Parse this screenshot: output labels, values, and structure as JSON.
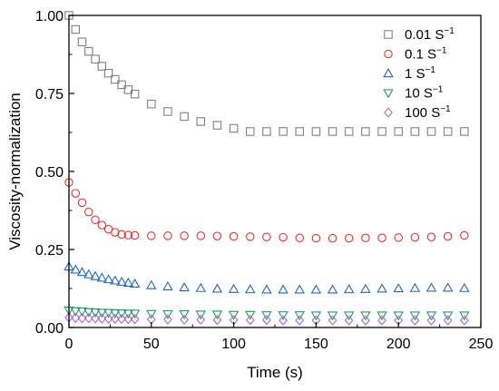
{
  "chart_data": {
    "type": "scatter",
    "title": "",
    "xlabel": "Time (s)",
    "ylabel": "Viscosity-normalization",
    "xlim": [
      0,
      250
    ],
    "ylim": [
      0,
      1.0
    ],
    "x_ticks": [
      0,
      50,
      100,
      150,
      200,
      250
    ],
    "x_tick_labels": [
      "0",
      "50",
      "100",
      "150",
      "200",
      "250"
    ],
    "y_ticks": [
      0,
      0.25,
      0.5,
      0.75,
      1.0
    ],
    "y_tick_labels": [
      "0.00",
      "0.25",
      "0.50",
      "0.75",
      "1.00"
    ],
    "grid": false,
    "legend_position": "top-right",
    "x": [
      0,
      4,
      8,
      12,
      16,
      20,
      24,
      28,
      32,
      36,
      40,
      50,
      60,
      70,
      80,
      90,
      100,
      110,
      120,
      130,
      140,
      150,
      160,
      170,
      180,
      190,
      200,
      210,
      220,
      230,
      240
    ],
    "series": [
      {
        "name": "0.01 S",
        "name_sup": "−1",
        "color": "#808080",
        "marker": "square",
        "values": [
          1.0,
          0.955,
          0.915,
          0.885,
          0.86,
          0.837,
          0.815,
          0.795,
          0.778,
          0.762,
          0.748,
          0.716,
          0.692,
          0.676,
          0.66,
          0.648,
          0.638,
          0.628,
          0.628,
          0.628,
          0.628,
          0.628,
          0.628,
          0.628,
          0.628,
          0.628,
          0.628,
          0.628,
          0.628,
          0.628,
          0.628
        ]
      },
      {
        "name": "0.1 S",
        "name_sup": "−1",
        "color": "#e8302a",
        "marker": "circle",
        "values": [
          0.465,
          0.43,
          0.4,
          0.37,
          0.345,
          0.328,
          0.315,
          0.305,
          0.298,
          0.296,
          0.295,
          0.294,
          0.294,
          0.294,
          0.294,
          0.293,
          0.292,
          0.291,
          0.29,
          0.289,
          0.287,
          0.286,
          0.286,
          0.286,
          0.287,
          0.287,
          0.288,
          0.289,
          0.29,
          0.292,
          0.295
        ]
      },
      {
        "name": "1 S",
        "name_sup": "−1",
        "color": "#1f68c9",
        "marker": "triangle-up",
        "values": [
          0.195,
          0.185,
          0.177,
          0.17,
          0.164,
          0.159,
          0.154,
          0.15,
          0.146,
          0.143,
          0.14,
          0.135,
          0.131,
          0.128,
          0.126,
          0.124,
          0.123,
          0.122,
          0.121,
          0.121,
          0.121,
          0.121,
          0.121,
          0.122,
          0.123,
          0.124,
          0.125,
          0.126,
          0.127,
          0.127,
          0.126
        ]
      },
      {
        "name": "10 S",
        "name_sup": "−1",
        "color": "#1f9e63",
        "marker": "triangle-down",
        "values": [
          0.055,
          0.053,
          0.052,
          0.05,
          0.049,
          0.048,
          0.047,
          0.046,
          0.046,
          0.045,
          0.045,
          0.044,
          0.043,
          0.043,
          0.042,
          0.042,
          0.041,
          0.041,
          0.04,
          0.04,
          0.04,
          0.039,
          0.039,
          0.039,
          0.039,
          0.039,
          0.039,
          0.039,
          0.039,
          0.039,
          0.039
        ]
      },
      {
        "name": "100 S",
        "name_sup": "−1",
        "color": "#b061d6",
        "marker": "diamond",
        "values": [
          0.032,
          0.031,
          0.03,
          0.03,
          0.029,
          0.029,
          0.028,
          0.028,
          0.028,
          0.027,
          0.027,
          0.026,
          0.026,
          0.025,
          0.025,
          0.024,
          0.024,
          0.024,
          0.024,
          0.023,
          0.023,
          0.023,
          0.023,
          0.023,
          0.023,
          0.023,
          0.023,
          0.023,
          0.023,
          0.023,
          0.023
        ]
      }
    ]
  }
}
